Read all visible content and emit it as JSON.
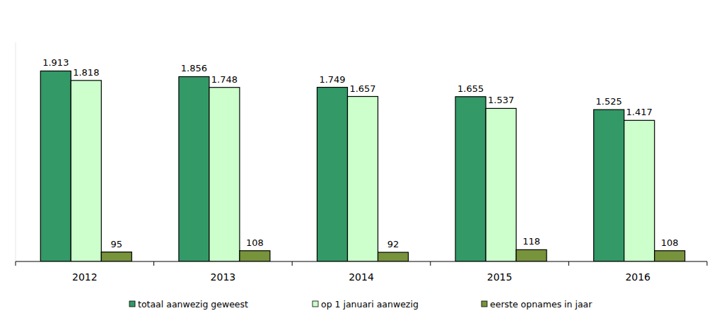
{
  "chart_data": {
    "type": "bar",
    "categories": [
      "2012",
      "2013",
      "2014",
      "2015",
      "2016"
    ],
    "series": [
      {
        "name": "totaal aanwezig geweest",
        "color": "#339966",
        "values": [
          1913,
          1856,
          1749,
          1655,
          1525
        ],
        "value_labels": [
          "1.913",
          "1.856",
          "1.749",
          "1.655",
          "1.525"
        ]
      },
      {
        "name": "op 1 januari aanwezig",
        "color": "#ccffcc",
        "values": [
          1818,
          1748,
          1657,
          1537,
          1417
        ],
        "value_labels": [
          "1.818",
          "1.748",
          "1.657",
          "1.537",
          "1.417"
        ]
      },
      {
        "name": "eerste opnames in jaar",
        "color": "#77933c",
        "values": [
          95,
          108,
          92,
          118,
          108
        ]
      }
    ],
    "ylim": [
      0,
      2200
    ],
    "data_labels": true,
    "tick_labels": "x",
    "legend": "bottom"
  }
}
